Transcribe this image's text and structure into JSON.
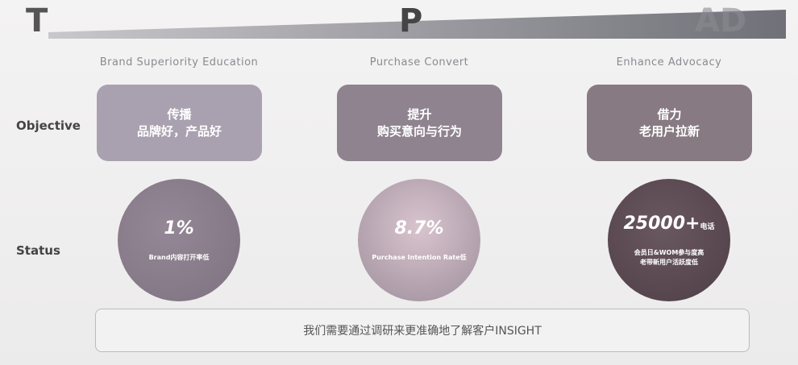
{
  "banner": {
    "left": "T",
    "middle": "P",
    "right": "AD"
  },
  "columns": [
    {
      "header": "Brand Superiority Education",
      "objective": [
        "传播",
        "品牌好，产品好"
      ],
      "status_value": "1%",
      "status_label": [
        "Brand内容打开率低"
      ],
      "status_suffix": ""
    },
    {
      "header": "Purchase Convert",
      "objective": [
        "提升",
        "购买意向与行为"
      ],
      "status_value": "8.7%",
      "status_label": [
        "Purchase Intention Rate低"
      ],
      "status_suffix": ""
    },
    {
      "header": "Enhance Advocacy",
      "objective": [
        "借力",
        "老用户拉新"
      ],
      "status_value": "25000+",
      "status_label": [
        "会员日&WOM参与度高",
        "老带新用户活跃度低"
      ],
      "status_suffix": "电话"
    }
  ],
  "row_labels": {
    "objective": "Objective",
    "status": "Status"
  },
  "footer": "我们需要通过调研来更准确地了解客户INSIGHT"
}
